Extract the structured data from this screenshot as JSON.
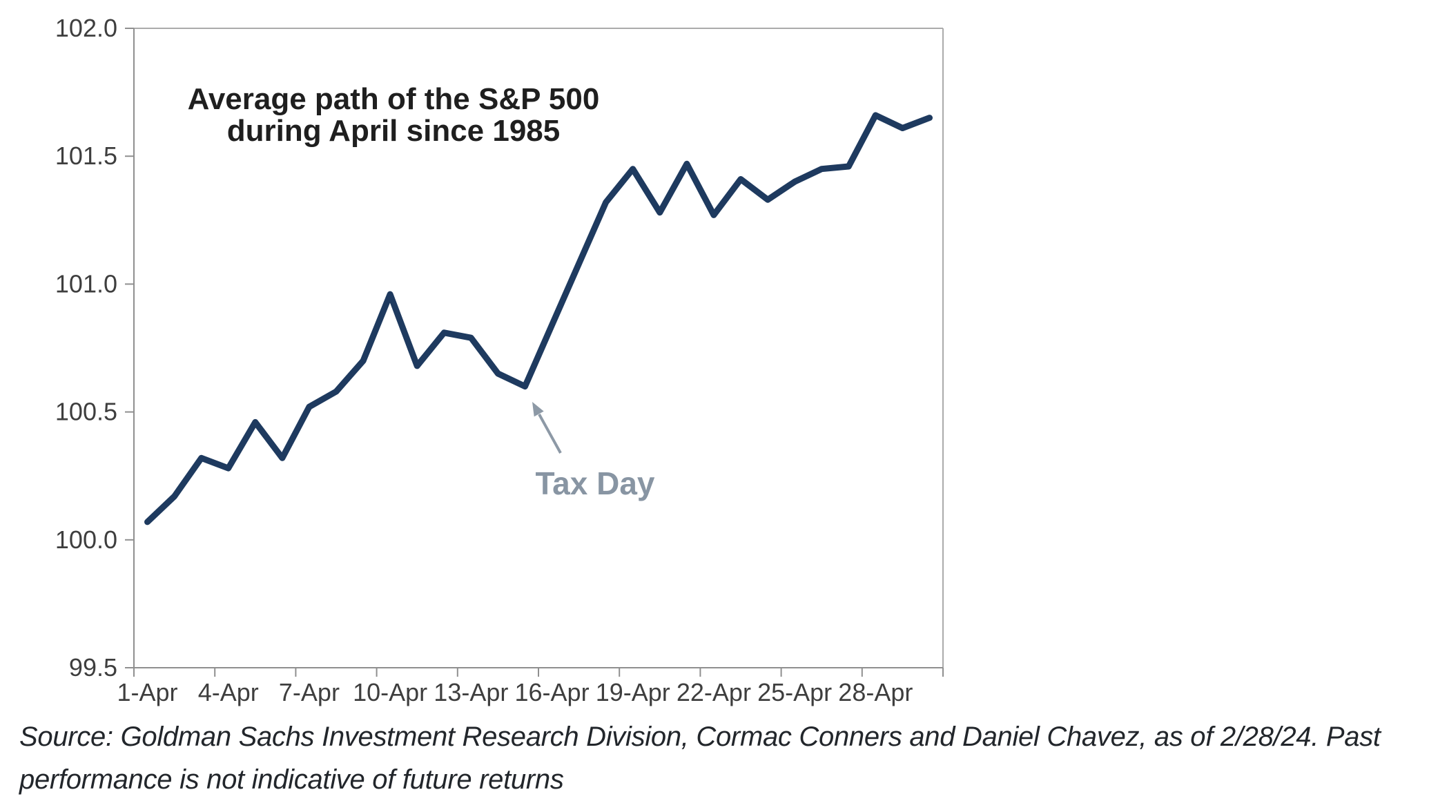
{
  "chart_data": {
    "type": "line",
    "title": "Average path of the S&P 500 during April since 1985",
    "title_line1": "Average path of the S&P 500",
    "title_line2": "during April since 1985",
    "xlabel": "",
    "ylabel": "",
    "x": [
      "1-Apr",
      "2-Apr",
      "3-Apr",
      "4-Apr",
      "5-Apr",
      "6-Apr",
      "7-Apr",
      "8-Apr",
      "9-Apr",
      "10-Apr",
      "11-Apr",
      "12-Apr",
      "13-Apr",
      "14-Apr",
      "15-Apr",
      "16-Apr",
      "17-Apr",
      "18-Apr",
      "19-Apr",
      "20-Apr",
      "21-Apr",
      "22-Apr",
      "23-Apr",
      "24-Apr",
      "25-Apr",
      "26-Apr",
      "27-Apr",
      "28-Apr",
      "29-Apr",
      "30-Apr"
    ],
    "values": [
      100.07,
      100.17,
      100.32,
      100.28,
      100.46,
      100.32,
      100.52,
      100.58,
      100.7,
      100.96,
      100.68,
      100.81,
      100.79,
      100.65,
      100.6,
      100.84,
      101.08,
      101.32,
      101.45,
      101.28,
      101.47,
      101.27,
      101.41,
      101.33,
      101.4,
      101.45,
      101.46,
      101.66,
      101.61,
      101.65
    ],
    "series_name": "Average path of the S&P 500 during April since 1985 (indexed)",
    "x_tick_labels": [
      "1-Apr",
      "4-Apr",
      "7-Apr",
      "10-Apr",
      "13-Apr",
      "16-Apr",
      "19-Apr",
      "22-Apr",
      "25-Apr",
      "28-Apr"
    ],
    "x_tick_interval": 3,
    "y_ticks": [
      99.5,
      100.0,
      100.5,
      101.0,
      101.5,
      102.0
    ],
    "y_tick_labels": [
      "99.5",
      "100.0",
      "100.5",
      "101.0",
      "101.5",
      "102.0"
    ],
    "ylim": [
      99.5,
      102.0
    ],
    "grid": "off",
    "legend": "none",
    "line_color": "#1e3a5f",
    "annotation": {
      "label": "Tax Day",
      "target_category": "15-Apr",
      "target_value": 100.6,
      "color": "#8d99a6"
    }
  },
  "source": {
    "line1": "Source: Goldman Sachs Investment Research Division, Cormac Conners and Daniel Chavez, as of 2/28/24. Past",
    "line2": "performance is not indicative of future returns",
    "full": "Source: Goldman Sachs Investment Research Division, Cormac Conners and Daniel Chavez, as of 2/28/24. Past performance is not indicative of future returns"
  }
}
